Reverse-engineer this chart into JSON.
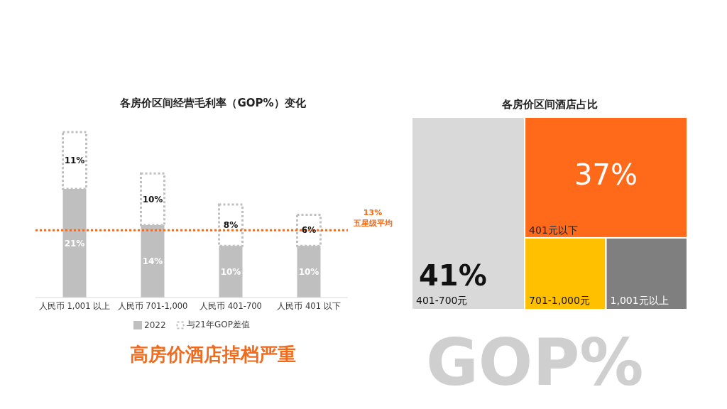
{
  "chart_data": [
    {
      "type": "bar",
      "title": "各房价区间经营毛利率（GOP%）变化",
      "stacked": true,
      "categories": [
        "人民币 1,001 以上",
        "人民币 701-1,000",
        "人民币 401-700",
        "人民币 401 以下"
      ],
      "series": [
        {
          "name": "2022",
          "type": "bar",
          "color": "#bfbfbf",
          "values": [
            21,
            14,
            10,
            10
          ],
          "value_labels": [
            "21%",
            "14%",
            "10%",
            "10%"
          ]
        },
        {
          "name": "与21年GOP差值",
          "type": "bar",
          "line_style": "dotted",
          "color": "#bfbfbf",
          "values": [
            11,
            10,
            8,
            6
          ],
          "value_labels": [
            "11%",
            "10%",
            "8%",
            "6%"
          ]
        }
      ],
      "ref_lines": [
        {
          "axis": "y",
          "value": 13,
          "label": "13%\n五星级平均",
          "color": "#f26b1d",
          "line_style": "dotted"
        }
      ],
      "legend": "bottom",
      "grid": false,
      "annotations": [
        "高房价酒店掉档严重",
        "GOP%"
      ]
    },
    {
      "type": "other",
      "title": "各房价区间酒店占比",
      "categories": [
        "401-700元",
        "401元以下",
        "701-1,000元",
        "1,001元以上"
      ],
      "values": [
        41,
        37,
        null,
        null
      ],
      "value_labels": [
        "41%",
        "37%",
        null,
        null
      ],
      "colors": [
        "#d9d9d9",
        "#ff6a1a",
        "#ffc000",
        "#7f7f7f"
      ]
    }
  ]
}
